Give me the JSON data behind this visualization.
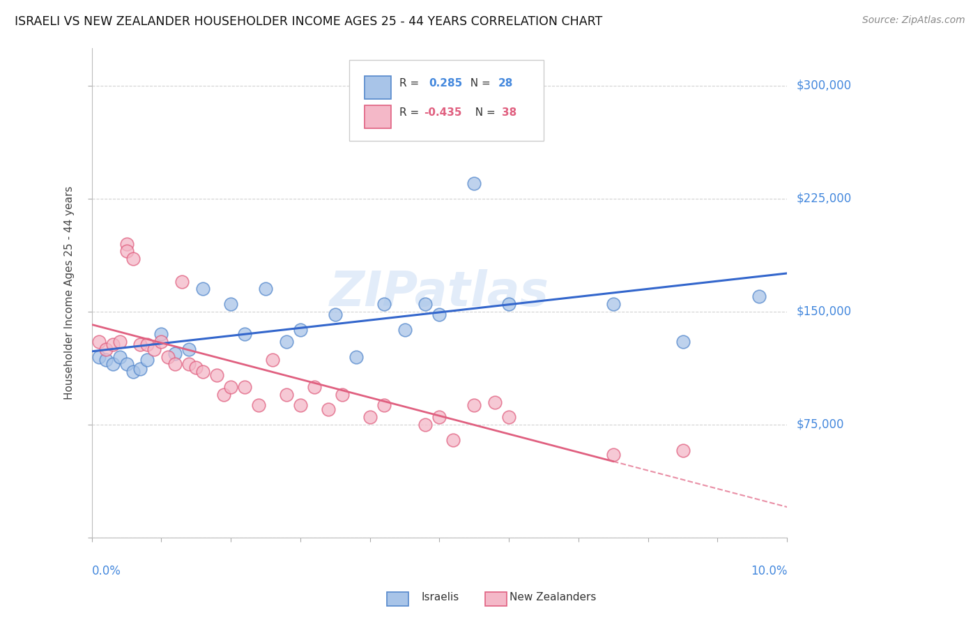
{
  "title": "ISRAELI VS NEW ZEALANDER HOUSEHOLDER INCOME AGES 25 - 44 YEARS CORRELATION CHART",
  "source": "Source: ZipAtlas.com",
  "ylabel": "Householder Income Ages 25 - 44 years",
  "yticks": [
    0,
    75000,
    150000,
    225000,
    300000
  ],
  "ytick_labels": [
    "",
    "$75,000",
    "$150,000",
    "$225,000",
    "$300,000"
  ],
  "xlim": [
    0.0,
    0.1
  ],
  "ylim": [
    0,
    325000
  ],
  "watermark": "ZIPatlas",
  "israeli_color": "#a8c4e8",
  "nz_color": "#f4b8c8",
  "israeli_edge_color": "#5588cc",
  "nz_edge_color": "#e06080",
  "israeli_line_color": "#3366cc",
  "nz_line_color": "#e06080",
  "background_color": "#ffffff",
  "grid_color": "#cccccc",
  "label_color": "#4488dd",
  "israelis_x": [
    0.001,
    0.002,
    0.003,
    0.004,
    0.005,
    0.006,
    0.007,
    0.008,
    0.01,
    0.012,
    0.014,
    0.016,
    0.02,
    0.022,
    0.025,
    0.028,
    0.03,
    0.035,
    0.038,
    0.042,
    0.045,
    0.048,
    0.05,
    0.055,
    0.06,
    0.075,
    0.085,
    0.096
  ],
  "israelis_y": [
    120000,
    118000,
    115000,
    120000,
    115000,
    110000,
    112000,
    118000,
    135000,
    122000,
    125000,
    165000,
    155000,
    135000,
    165000,
    130000,
    138000,
    148000,
    120000,
    155000,
    138000,
    155000,
    148000,
    235000,
    155000,
    155000,
    130000,
    160000
  ],
  "nz_x": [
    0.001,
    0.002,
    0.003,
    0.004,
    0.005,
    0.005,
    0.006,
    0.007,
    0.008,
    0.009,
    0.01,
    0.011,
    0.012,
    0.013,
    0.014,
    0.015,
    0.016,
    0.018,
    0.019,
    0.02,
    0.022,
    0.024,
    0.026,
    0.028,
    0.03,
    0.032,
    0.034,
    0.036,
    0.04,
    0.042,
    0.048,
    0.05,
    0.052,
    0.055,
    0.058,
    0.06,
    0.075,
    0.085
  ],
  "nz_y": [
    130000,
    125000,
    128000,
    130000,
    195000,
    190000,
    185000,
    128000,
    128000,
    125000,
    130000,
    120000,
    115000,
    170000,
    115000,
    113000,
    110000,
    108000,
    95000,
    100000,
    100000,
    88000,
    118000,
    95000,
    88000,
    100000,
    85000,
    95000,
    80000,
    88000,
    75000,
    80000,
    65000,
    88000,
    90000,
    80000,
    55000,
    58000
  ]
}
